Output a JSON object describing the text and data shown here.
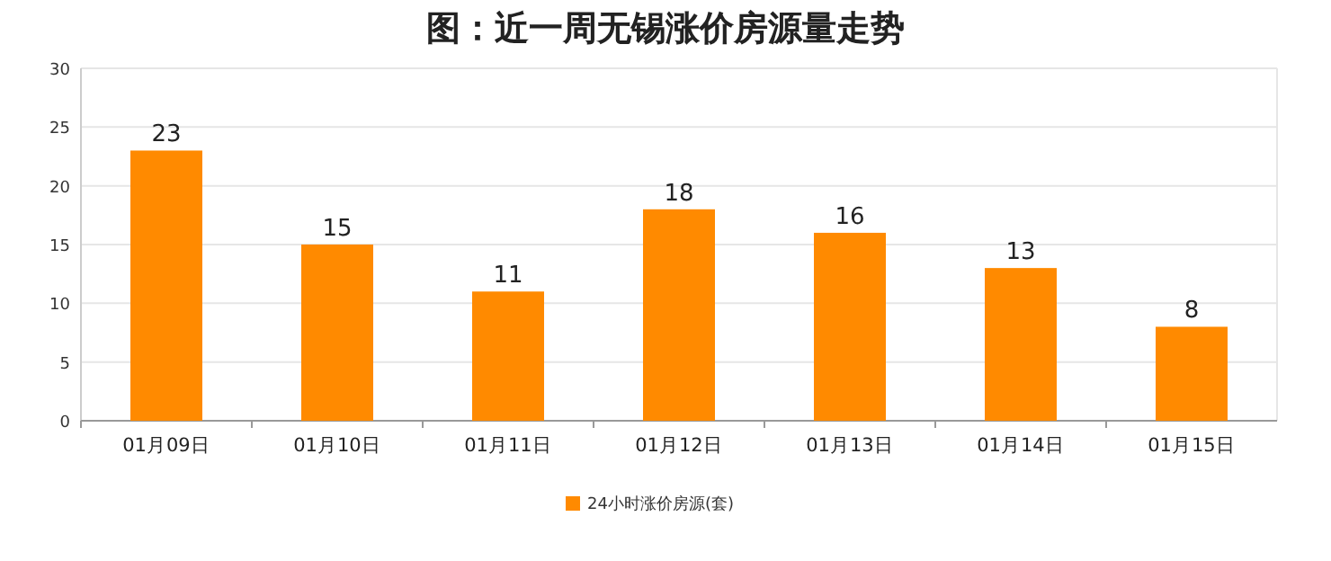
{
  "chart_data": {
    "type": "bar",
    "title": "图：近一周无锡涨价房源量走势",
    "categories": [
      "01月09日",
      "01月10日",
      "01月11日",
      "01月12日",
      "01月13日",
      "01月14日",
      "01月15日"
    ],
    "series": [
      {
        "name": "24小时涨价房源(套)",
        "color": "#ff8a00",
        "values": [
          23,
          15,
          11,
          18,
          16,
          13,
          8
        ]
      }
    ],
    "ylim": [
      0,
      30
    ],
    "yticks": [
      0,
      5,
      10,
      15,
      20,
      25,
      30
    ],
    "grid": "y",
    "legend": "bottom",
    "data_labels": true
  }
}
